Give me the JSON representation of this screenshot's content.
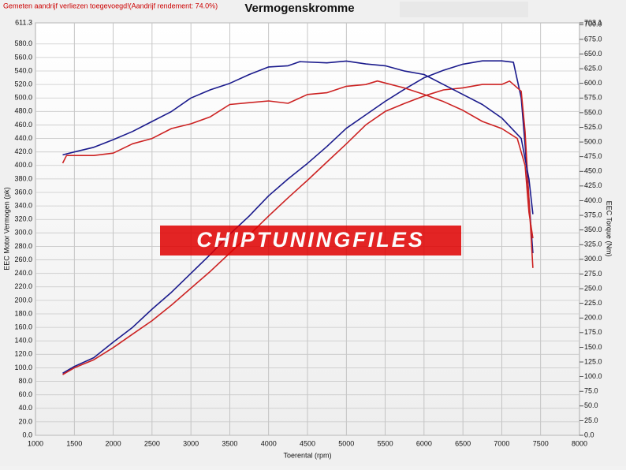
{
  "chart_data": {
    "type": "line",
    "notice": "Gemeten aandrijf verliezen toegevoegd!(Aandrijf rendement: 74.0%)",
    "title": "Vermogenskromme",
    "watermark": "CHIPTUNINGFILES",
    "xlabel": "Toerental (rpm)",
    "ylabel": "EEC Motor Vermogen (pk)",
    "y2label": "EEC Torque (Nm)",
    "grid": true,
    "xlim": [
      1000,
      8000
    ],
    "xticks": [
      1000,
      1500,
      2000,
      2500,
      3000,
      3500,
      4000,
      4500,
      5000,
      5500,
      6000,
      6500,
      7000,
      7500,
      8000
    ],
    "ylim": [
      0,
      611.3
    ],
    "yticks": [
      {
        "value": 0,
        "label": "0.0"
      },
      {
        "value": 20,
        "label": "20.0"
      },
      {
        "value": 40,
        "label": "40.0"
      },
      {
        "value": 60,
        "label": "60.0"
      },
      {
        "value": 80,
        "label": "80.0"
      },
      {
        "value": 100,
        "label": "100.0"
      },
      {
        "value": 120,
        "label": "120.0"
      },
      {
        "value": 140,
        "label": "140.0"
      },
      {
        "value": 160,
        "label": "160.0"
      },
      {
        "value": 180,
        "label": "180.0"
      },
      {
        "value": 200,
        "label": "200.0"
      },
      {
        "value": 220,
        "label": "220.0"
      },
      {
        "value": 240,
        "label": "240.0"
      },
      {
        "value": 260,
        "label": "260.0"
      },
      {
        "value": 280,
        "label": "280.0"
      },
      {
        "value": 300,
        "label": "300.0"
      },
      {
        "value": 320,
        "label": "320.0"
      },
      {
        "value": 340,
        "label": "340.0"
      },
      {
        "value": 360,
        "label": "360.0"
      },
      {
        "value": 380,
        "label": "380.0"
      },
      {
        "value": 400,
        "label": "400.0"
      },
      {
        "value": 420,
        "label": "420.0"
      },
      {
        "value": 440,
        "label": "440.0"
      },
      {
        "value": 460,
        "label": "460.0"
      },
      {
        "value": 480,
        "label": "480.0"
      },
      {
        "value": 500,
        "label": "500.0"
      },
      {
        "value": 520,
        "label": "520.0"
      },
      {
        "value": 540,
        "label": "540.0"
      },
      {
        "value": 560,
        "label": "560.0"
      },
      {
        "value": 580,
        "label": "580.0"
      },
      611.3
    ],
    "y2lim": [
      0,
      703.1
    ],
    "y2ticks": [
      {
        "value": 0,
        "label": "0.0"
      },
      {
        "value": 25,
        "label": "25.0"
      },
      {
        "value": 50,
        "label": "50.0"
      },
      {
        "value": 75,
        "label": "75.0"
      },
      {
        "value": 100,
        "label": "100.0"
      },
      {
        "value": 125,
        "label": "125.0"
      },
      {
        "value": 150,
        "label": "150.0"
      },
      {
        "value": 175,
        "label": "175.0"
      },
      {
        "value": 200,
        "label": "200.0"
      },
      {
        "value": 225,
        "label": "225.0"
      },
      {
        "value": 250,
        "label": "250.0"
      },
      {
        "value": 275,
        "label": "275.0"
      },
      {
        "value": 300,
        "label": "300.0"
      },
      {
        "value": 325,
        "label": "325.0"
      },
      {
        "value": 350,
        "label": "350.0"
      },
      {
        "value": 375,
        "label": "375.0"
      },
      {
        "value": 400,
        "label": "400.0"
      },
      {
        "value": 425,
        "label": "425.0"
      },
      {
        "value": 450,
        "label": "450.0"
      },
      {
        "value": 475,
        "label": "475.0"
      },
      {
        "value": 500,
        "label": "500.0"
      },
      {
        "value": 525,
        "label": "525.0"
      },
      {
        "value": 550,
        "label": "550.0"
      },
      {
        "value": 575,
        "label": "575.0"
      },
      {
        "value": 600,
        "label": "600.0"
      },
      {
        "value": 625,
        "label": "625.0"
      },
      {
        "value": 650,
        "label": "650.0"
      },
      {
        "value": 675,
        "label": "675.0"
      },
      {
        "value": 700,
        "label": "700.0"
      },
      703.1
    ],
    "series": [
      {
        "color": "#1a1a8c",
        "axis": "y",
        "x": [
          1350,
          1500,
          1750,
          2000,
          2250,
          2500,
          2750,
          3000,
          3250,
          3500,
          3750,
          4000,
          4250,
          4500,
          4750,
          5000,
          5250,
          5500,
          5750,
          6000,
          6250,
          6500,
          6750,
          7000,
          7150,
          7250,
          7300,
          7350,
          7400
        ],
        "values": [
          92,
          102,
          115,
          138,
          160,
          187,
          212,
          240,
          268,
          298,
          325,
          355,
          380,
          403,
          428,
          455,
          475,
          495,
          513,
          530,
          541,
          550,
          555,
          555,
          553,
          500,
          430,
          350,
          270
        ]
      },
      {
        "color": "#cc2222",
        "axis": "y",
        "x": [
          1350,
          1500,
          1750,
          2000,
          2250,
          2500,
          2750,
          3000,
          3250,
          3500,
          3750,
          4000,
          4250,
          4500,
          4750,
          5000,
          5250,
          5500,
          5750,
          6000,
          6250,
          6500,
          6750,
          7000,
          7100,
          7250,
          7300,
          7350,
          7400
        ],
        "values": [
          90,
          100,
          112,
          130,
          150,
          170,
          193,
          218,
          243,
          270,
          297,
          325,
          352,
          378,
          405,
          432,
          460,
          480,
          492,
          503,
          512,
          515,
          520,
          520,
          525,
          510,
          450,
          350,
          248
        ]
      },
      {
        "color": "#1a1a8c",
        "axis": "y2",
        "x": [
          1350,
          1500,
          1750,
          2000,
          2250,
          2500,
          2750,
          3000,
          3250,
          3500,
          3750,
          4000,
          4250,
          4400,
          4750,
          5000,
          5250,
          5500,
          5750,
          6000,
          6250,
          6500,
          6750,
          7000,
          7250,
          7350,
          7400
        ],
        "values": [
          478,
          483,
          491,
          504,
          518,
          535,
          552,
          575,
          589,
          600,
          615,
          628,
          630,
          637,
          635,
          638,
          633,
          630,
          621,
          615,
          598,
          581,
          564,
          541,
          506,
          437,
          377
        ]
      },
      {
        "color": "#cc2222",
        "axis": "y2",
        "x": [
          1350,
          1400,
          1750,
          2000,
          2250,
          2500,
          2750,
          3000,
          3250,
          3500,
          3750,
          4000,
          4250,
          4500,
          4750,
          5000,
          5250,
          5400,
          5750,
          6000,
          6250,
          6500,
          6750,
          7000,
          7200,
          7300,
          7350,
          7400
        ],
        "values": [
          464,
          477,
          477,
          481,
          497,
          506,
          523,
          531,
          543,
          564,
          567,
          570,
          566,
          581,
          584,
          595,
          598,
          604,
          592,
          581,
          569,
          554,
          535,
          523,
          506,
          460,
          380,
          336
        ]
      }
    ]
  }
}
